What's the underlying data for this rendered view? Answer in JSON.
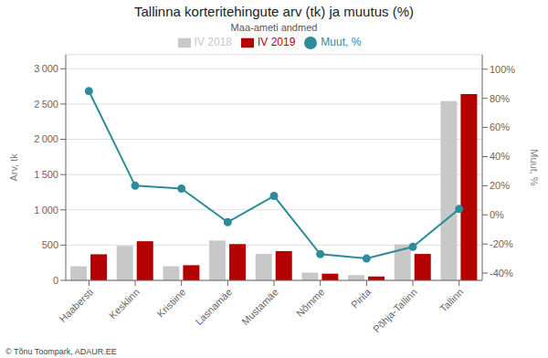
{
  "chart_data": {
    "type": "bar",
    "title": "Tallinna korteritehingute arv (tk) ja muutus (%)",
    "subtitle": "Maa-ameti andmed",
    "annotations": [
      "© Tõnu Toompark, ADAUR.EE"
    ],
    "ylabel": "Arv, tk",
    "y2label": "Muut, %",
    "categories": [
      "Haabersti",
      "Kesklinn",
      "Kristiine",
      "Lasnamäe",
      "Mustamäe",
      "Nõmme",
      "Pirita",
      "Põhja-Tallinn",
      "Tallinn"
    ],
    "series": [
      {
        "name": "IV 2018",
        "color": "#c8c8c8",
        "values": [
          200,
          490,
          200,
          565,
          375,
          110,
          75,
          510,
          2540
        ]
      },
      {
        "name": "IV 2019",
        "color": "#b50000",
        "values": [
          370,
          555,
          215,
          515,
          415,
          95,
          55,
          375,
          2640
        ]
      },
      {
        "name": "Muut, %",
        "type": "line",
        "axis": "y2",
        "color": "#2e8b9a",
        "marker": "circle",
        "values": [
          85,
          20,
          18,
          -5,
          13,
          -27,
          -30,
          -22,
          4
        ]
      }
    ],
    "ylim": [
      0,
      3200
    ],
    "yticks": [
      0,
      500,
      {
        "value": 1000,
        "label": "1 000"
      },
      {
        "value": 1500,
        "label": "1 500"
      },
      {
        "value": 2000,
        "label": "2 000"
      },
      {
        "value": 2500,
        "label": "2 500"
      },
      {
        "value": 3000,
        "label": "3 000"
      }
    ],
    "y2lim": [
      -45,
      110
    ],
    "y2ticks": [
      {
        "value": -40,
        "label": "-40%"
      },
      {
        "value": -20,
        "label": "-20%"
      },
      {
        "value": 0,
        "label": "0%"
      },
      {
        "value": 20,
        "label": "20%"
      },
      {
        "value": 40,
        "label": "40%"
      },
      {
        "value": 60,
        "label": "60%"
      },
      {
        "value": 80,
        "label": "80%"
      },
      {
        "value": 100,
        "label": "100%"
      }
    ],
    "grid": true,
    "legend": "top"
  }
}
